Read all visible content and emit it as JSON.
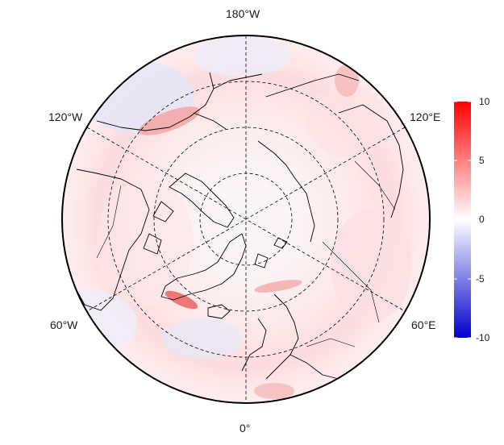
{
  "map": {
    "projection": "north-polar-stereographic",
    "longitude_labels": {
      "top": "180°W",
      "upper_left": "120°W",
      "upper_right": "120°E",
      "lower_left": "60°W",
      "lower_right": "60°E",
      "bottom": "0°"
    },
    "graticule_style": "dashed"
  },
  "colorbar": {
    "ticks": [
      "10",
      "5",
      "0",
      "-5",
      "-10"
    ],
    "tick_values": [
      10,
      5,
      0,
      -5,
      -10
    ],
    "range": [
      -10,
      10
    ],
    "colors": {
      "high": "#ff0000",
      "mid": "#ffffff",
      "low": "#0000cc"
    }
  }
}
